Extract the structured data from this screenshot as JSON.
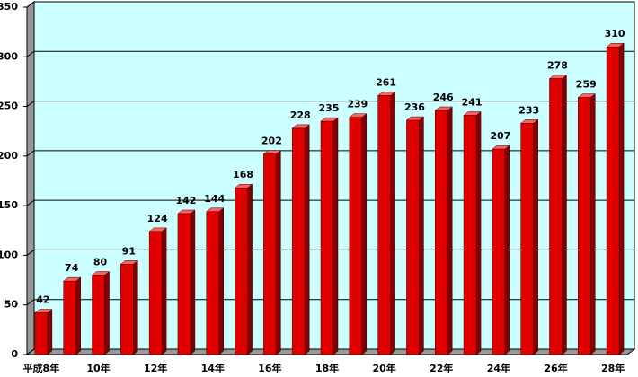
{
  "chart_data": {
    "type": "bar",
    "categories": [
      "平成8年",
      null,
      "10年",
      null,
      "12年",
      null,
      "14年",
      null,
      "16年",
      null,
      "18年",
      null,
      "20年",
      null,
      "22年",
      null,
      "24年",
      null,
      "26年",
      null,
      "28年"
    ],
    "values": [
      42,
      74,
      80,
      91,
      124,
      142,
      144,
      168,
      202,
      228,
      235,
      239,
      261,
      236,
      246,
      241,
      207,
      233,
      278,
      259,
      310
    ],
    "color": "#e00000",
    "ylim": [
      0,
      350
    ],
    "yticks": [
      0,
      50,
      100,
      150,
      200,
      250,
      300,
      350
    ],
    "grid": true
  }
}
